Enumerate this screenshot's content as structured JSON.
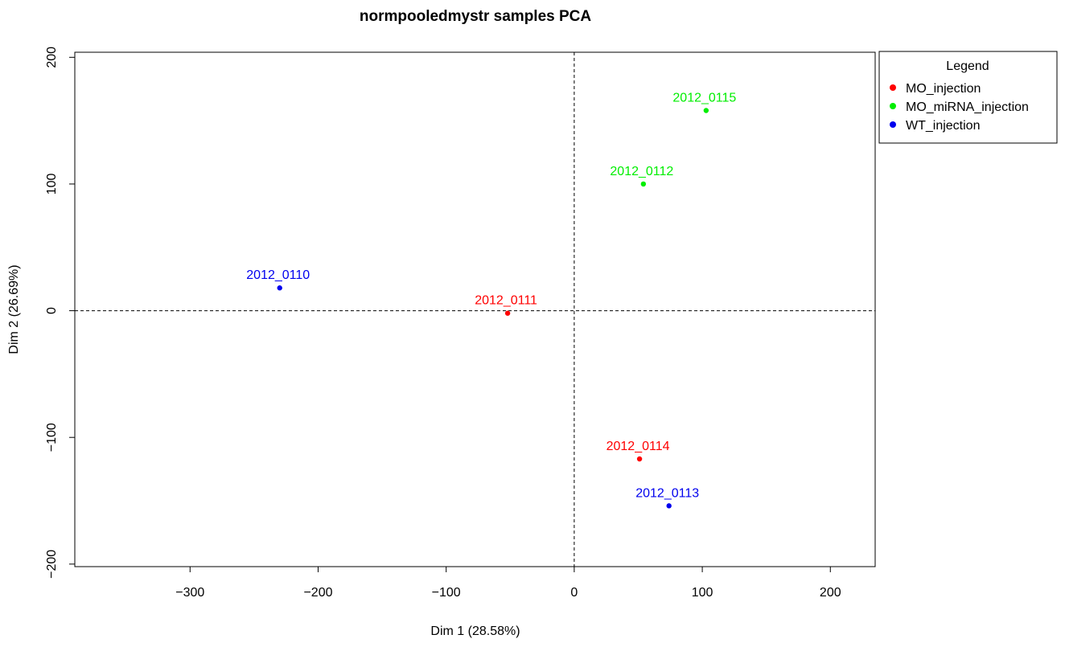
{
  "chart_data": {
    "type": "scatter",
    "title": "normpooledmystr  samples PCA",
    "xlabel": "Dim 1 (28.58%)",
    "ylabel": "Dim 2 (26.69%)",
    "xlim": [
      -390,
      235
    ],
    "ylim": [
      -202,
      204
    ],
    "xticks": [
      -300,
      -200,
      -100,
      0,
      100,
      200
    ],
    "yticks": [
      -200,
      -100,
      0,
      100,
      200
    ],
    "reference_lines": {
      "x": 0,
      "y": 0,
      "style": "dashed"
    },
    "legend": {
      "title": "Legend",
      "placement": "outside-top-right",
      "entries": [
        {
          "name": "MO_injection",
          "color": "#ff0000"
        },
        {
          "name": "MO_miRNA_injection",
          "color": "#00ee00"
        },
        {
          "name": "WT_injection",
          "color": "#0000ee"
        }
      ]
    },
    "points": [
      {
        "label": "2012_0115",
        "group": "MO_miRNA_injection",
        "x": 103,
        "y": 158
      },
      {
        "label": "2012_0112",
        "group": "MO_miRNA_injection",
        "x": 54,
        "y": 100
      },
      {
        "label": "2012_0110",
        "group": "WT_injection",
        "x": -230,
        "y": 18
      },
      {
        "label": "2012_0111",
        "group": "MO_injection",
        "x": -52,
        "y": -2
      },
      {
        "label": "2012_0114",
        "group": "MO_injection",
        "x": 51,
        "y": -117
      },
      {
        "label": "2012_0113",
        "group": "WT_injection",
        "x": 74,
        "y": -154
      }
    ]
  }
}
